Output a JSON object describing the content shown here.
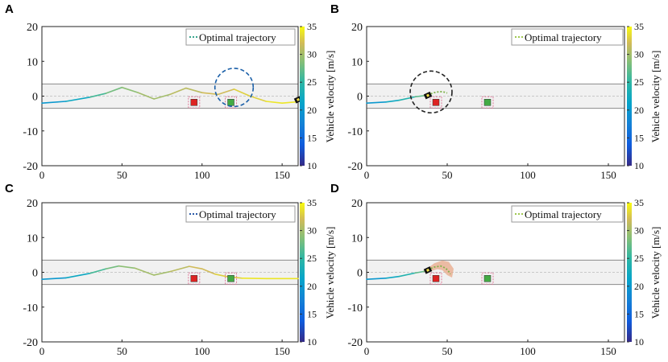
{
  "figure": {
    "legend_label": "Optimal trajectory",
    "colorbar_label": "Vehicle velocity [m/s]",
    "colorbar_ticks": [
      10,
      15,
      20,
      25,
      30,
      35
    ],
    "colorbar_range": [
      10,
      35
    ]
  },
  "chart_data": [
    {
      "panel": "A",
      "type": "line",
      "xlim": [
        0,
        160
      ],
      "ylim": [
        -20,
        20
      ],
      "xticks": [
        0,
        50,
        100,
        150
      ],
      "yticks": [
        -20,
        -10,
        0,
        10,
        20
      ],
      "lane_bounds": [
        -3.5,
        0,
        3.5
      ],
      "trajectory": {
        "x": [
          0,
          15,
          30,
          40,
          50,
          60,
          70,
          80,
          90,
          100,
          110,
          120,
          130,
          140,
          150,
          160
        ],
        "y": [
          -2,
          -1.5,
          -0.3,
          0.8,
          2.5,
          1.0,
          -0.8,
          0.5,
          2.3,
          1.0,
          0.5,
          2.0,
          0.0,
          -1.5,
          -2.0,
          -1.6
        ],
        "velocity": [
          20,
          22,
          26,
          28,
          29,
          30,
          30,
          31,
          31,
          32,
          32,
          33,
          33,
          34,
          34,
          35
        ]
      },
      "obstacles": [
        {
          "x": 95,
          "y": -1.8,
          "color": "#dd2222"
        },
        {
          "x": 118,
          "y": -1.8,
          "color": "#44aa44"
        }
      ],
      "highlight": {
        "x": 120,
        "y": 2.5,
        "r": 5.5,
        "color": "#1a5fa8"
      },
      "vehicle_marker": {
        "x": 160,
        "y": -1
      }
    },
    {
      "panel": "B",
      "type": "line",
      "xlim": [
        0,
        160
      ],
      "ylim": [
        -20,
        20
      ],
      "xticks": [
        0,
        50,
        100,
        150
      ],
      "yticks": [
        -20,
        -10,
        0,
        10,
        20
      ],
      "lane_bounds": [
        -3.5,
        0,
        3.5
      ],
      "trajectory": {
        "x": [
          0,
          12,
          20,
          30,
          35,
          38
        ],
        "y": [
          -2,
          -1.7,
          -1.2,
          -0.2,
          0.1,
          0.2
        ],
        "velocity": [
          20,
          22,
          24,
          27,
          28,
          29
        ]
      },
      "predicted": {
        "x": [
          38,
          41,
          44,
          47,
          50
        ],
        "y": [
          0.3,
          0.9,
          1.2,
          1.3,
          0.9
        ]
      },
      "obstacles": [
        {
          "x": 43,
          "y": -1.8,
          "color": "#dd2222"
        },
        {
          "x": 75,
          "y": -1.8,
          "color": "#44aa44"
        }
      ],
      "highlight": {
        "x": 40,
        "y": 1.2,
        "r": 6,
        "color": "#222222"
      },
      "vehicle_marker": {
        "x": 38,
        "y": 0.2
      }
    },
    {
      "panel": "C",
      "type": "line",
      "xlim": [
        0,
        160
      ],
      "ylim": [
        -20,
        20
      ],
      "xticks": [
        0,
        50,
        100,
        150
      ],
      "yticks": [
        -20,
        -10,
        0,
        10,
        20
      ],
      "lane_bounds": [
        -3.5,
        0,
        3.5
      ],
      "trajectory": {
        "x": [
          0,
          15,
          30,
          40,
          48,
          58,
          70,
          80,
          92,
          100,
          108,
          115,
          125,
          140,
          160
        ],
        "y": [
          -2,
          -1.6,
          -0.3,
          1.0,
          1.8,
          1.2,
          -0.8,
          0.2,
          1.7,
          1.0,
          -0.5,
          -1.2,
          -1.7,
          -1.8,
          -1.8
        ],
        "velocity": [
          20,
          22,
          26,
          28,
          29,
          30,
          30,
          31,
          32,
          32,
          33,
          33,
          34,
          34,
          35
        ]
      },
      "obstacles": [
        {
          "x": 95,
          "y": -1.8,
          "color": "#dd2222"
        },
        {
          "x": 118,
          "y": -1.8,
          "color": "#44aa44"
        }
      ],
      "highlight": null,
      "vehicle_marker": null
    },
    {
      "panel": "D",
      "type": "line",
      "xlim": [
        0,
        160
      ],
      "ylim": [
        -20,
        20
      ],
      "xticks": [
        0,
        50,
        100,
        150
      ],
      "yticks": [
        -20,
        -10,
        0,
        10,
        20
      ],
      "lane_bounds": [
        -3.5,
        0,
        3.5
      ],
      "trajectory": {
        "x": [
          0,
          12,
          20,
          30,
          35,
          38
        ],
        "y": [
          -2,
          -1.7,
          -1.2,
          -0.2,
          0.2,
          0.6
        ],
        "velocity": [
          20,
          22,
          24,
          27,
          28,
          29
        ]
      },
      "predicted": {
        "x": [
          38,
          42,
          46,
          49,
          51,
          52
        ],
        "y": [
          0.8,
          1.5,
          1.8,
          1.2,
          0.2,
          -0.5
        ]
      },
      "uncertainty_region": {
        "x": [
          38,
          42,
          47,
          51,
          54,
          53,
          50,
          47,
          44,
          40
        ],
        "y": [
          1.2,
          2.6,
          3.4,
          3.0,
          1.0,
          -1.5,
          -0.8,
          0.6,
          0.9,
          0.4
        ]
      },
      "obstacles": [
        {
          "x": 43,
          "y": -1.8,
          "color": "#dd2222"
        },
        {
          "x": 75,
          "y": -1.8,
          "color": "#44aa44"
        }
      ],
      "highlight": null,
      "vehicle_marker": {
        "x": 38,
        "y": 0.6
      }
    }
  ]
}
